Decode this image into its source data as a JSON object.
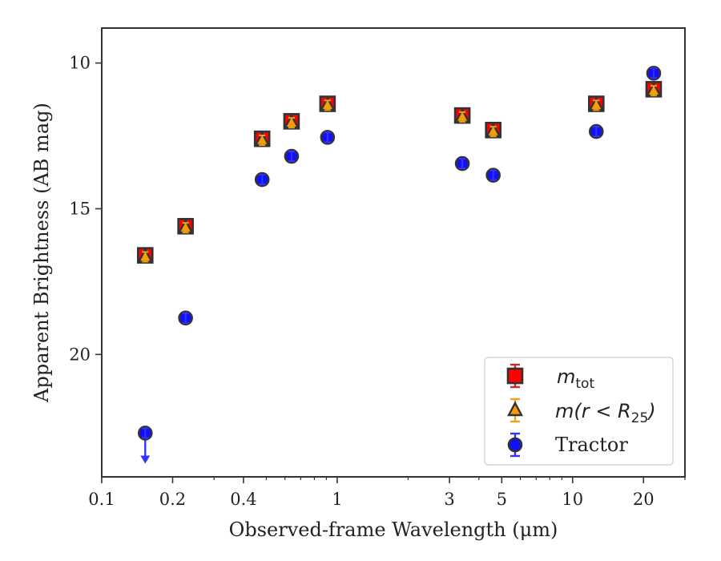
{
  "chart_data": {
    "type": "scatter",
    "title": "",
    "xlabel": "Observed-frame Wavelength (μm)",
    "ylabel": "Apparent Brightness (AB mag)",
    "xscale": "log",
    "xlim": [
      0.1,
      30
    ],
    "ylim": [
      24.2,
      8.8
    ],
    "y_inverted": true,
    "xticks": [
      0.1,
      0.2,
      0.4,
      1,
      3,
      5,
      10,
      20
    ],
    "xtick_labels": [
      "0.1",
      "0.2",
      "0.4",
      "1",
      "3",
      "5",
      "10",
      "20"
    ],
    "yticks": [
      10,
      15,
      20
    ],
    "ytick_labels": [
      "10",
      "15",
      "20"
    ],
    "grid": false,
    "legend_position": "lower-right",
    "series": [
      {
        "name": "m_tot",
        "legend_main": "m",
        "legend_sub": "tot",
        "marker": "square",
        "color": "#ff0000",
        "edge_color": "#333333",
        "errorbar_color": "#d62728",
        "x": [
          0.153,
          0.227,
          0.48,
          0.64,
          0.91,
          3.4,
          4.6,
          12.6,
          22.1
        ],
        "y": [
          16.6,
          15.6,
          12.6,
          12.0,
          11.4,
          11.8,
          12.3,
          11.4,
          10.9
        ]
      },
      {
        "name": "m(r < R25)",
        "legend_main": "m(r < R",
        "legend_sub": "25",
        "legend_tail": ")",
        "marker": "triangle",
        "color": "#ff9900",
        "edge_color": "#333333",
        "errorbar_color": "#e8a317",
        "x": [
          0.153,
          0.227,
          0.48,
          0.64,
          0.91,
          3.4,
          4.6,
          12.6,
          22.1
        ],
        "y": [
          16.65,
          15.65,
          12.65,
          12.05,
          11.45,
          11.85,
          12.35,
          11.45,
          10.95
        ]
      },
      {
        "name": "Tractor",
        "legend_main": "Tractor",
        "marker": "circle",
        "color": "#1010ff",
        "edge_color": "#333333",
        "errorbar_color": "#3333ff",
        "x": [
          0.153,
          0.227,
          0.48,
          0.64,
          0.91,
          3.4,
          4.6,
          12.6,
          22.1
        ],
        "y": [
          22.7,
          18.75,
          14.0,
          13.2,
          12.55,
          13.45,
          13.85,
          12.35,
          10.35
        ],
        "upper_limits": [
          true,
          false,
          false,
          false,
          false,
          false,
          false,
          false,
          false
        ]
      }
    ]
  }
}
